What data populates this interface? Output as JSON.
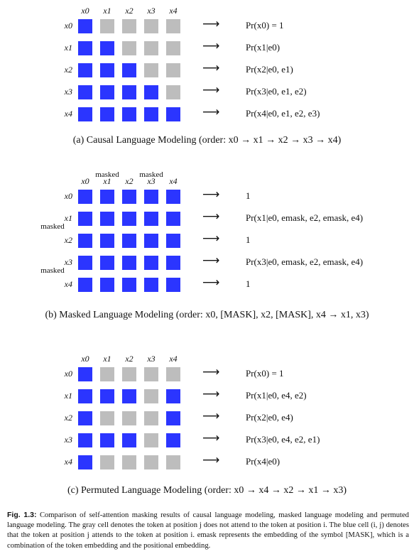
{
  "panels": [
    {
      "col_labels": [
        "x0",
        "x1",
        "x2",
        "x3",
        "x4"
      ],
      "col_sublabels": [
        "",
        "",
        "",
        "",
        ""
      ],
      "row_labels": [
        "x0",
        "x1",
        "x2",
        "x3",
        "x4"
      ],
      "row_sublabels": [
        "",
        "",
        "",
        "",
        ""
      ],
      "grid": [
        [
          1,
          0,
          0,
          0,
          0
        ],
        [
          1,
          1,
          0,
          0,
          0
        ],
        [
          1,
          1,
          1,
          0,
          0
        ],
        [
          1,
          1,
          1,
          1,
          0
        ],
        [
          1,
          1,
          1,
          1,
          1
        ]
      ],
      "arrows": [
        "⟶",
        "⟶",
        "⟶",
        "⟶",
        "⟶"
      ],
      "formulas": [
        "Pr(x0) = 1",
        "Pr(x1|e0)",
        "Pr(x2|e0, e1)",
        "Pr(x3|e0, e1, e2)",
        "Pr(x4|e0, e1, e2, e3)"
      ],
      "caption": "(a) Causal Language Modeling (order: x0 → x1 → x2 → x3 → x4)"
    },
    {
      "col_labels": [
        "x0",
        "x1",
        "x2",
        "x3",
        "x4"
      ],
      "col_sublabels": [
        "",
        "masked",
        "",
        "masked",
        ""
      ],
      "row_labels": [
        "x0",
        "x1",
        "x2",
        "x3",
        "x4"
      ],
      "row_sublabels": [
        "",
        "masked",
        "",
        "masked",
        ""
      ],
      "grid": [
        [
          1,
          1,
          1,
          1,
          1
        ],
        [
          1,
          1,
          1,
          1,
          1
        ],
        [
          1,
          1,
          1,
          1,
          1
        ],
        [
          1,
          1,
          1,
          1,
          1
        ],
        [
          1,
          1,
          1,
          1,
          1
        ]
      ],
      "arrows": [
        "⟶",
        "⟶",
        "⟶",
        "⟶",
        "⟶"
      ],
      "formulas": [
        "1",
        "Pr(x1|e0, emask, e2, emask, e4)",
        "1",
        "Pr(x3|e0, emask, e2, emask, e4)",
        "1"
      ],
      "caption": "(b) Masked Language Modeling (order: x0, [MASK], x2, [MASK], x4 → x1, x3)"
    },
    {
      "col_labels": [
        "x0",
        "x1",
        "x2",
        "x3",
        "x4"
      ],
      "col_sublabels": [
        "",
        "",
        "",
        "",
        ""
      ],
      "row_labels": [
        "x0",
        "x1",
        "x2",
        "x3",
        "x4"
      ],
      "row_sublabels": [
        "",
        "",
        "",
        "",
        ""
      ],
      "grid": [
        [
          1,
          0,
          0,
          0,
          0
        ],
        [
          1,
          1,
          1,
          0,
          1
        ],
        [
          1,
          0,
          0,
          0,
          1
        ],
        [
          1,
          1,
          1,
          0,
          1
        ],
        [
          1,
          0,
          0,
          0,
          0
        ]
      ],
      "arrows": [
        "⟶",
        "⟶",
        "⟶",
        "⟶",
        "⟶"
      ],
      "formulas": [
        "Pr(x0) = 1",
        "Pr(x1|e0, e4, e2)",
        "Pr(x2|e0, e4)",
        "Pr(x3|e0, e4, e2, e1)",
        "Pr(x4|e0)"
      ],
      "caption": "(c) Permuted Language Modeling (order: x0 → x4 → x2 → x1 → x3)"
    }
  ],
  "figure_caption": {
    "label": "Fig. 1.3:",
    "text": "Comparison of self-attention masking results of causal language modeling, masked language modeling and permuted language modeling. The gray cell denotes the token at position j does not attend to the token at position i. The blue cell (i, j) denotes that the token at position j attends to the token at position i. emask represents the embedding of the symbol [MASK], which is a combination of the token embedding and the positional embedding."
  },
  "colors": {
    "attend": "#2b35ff",
    "not_attend": "#bdbdbd"
  }
}
